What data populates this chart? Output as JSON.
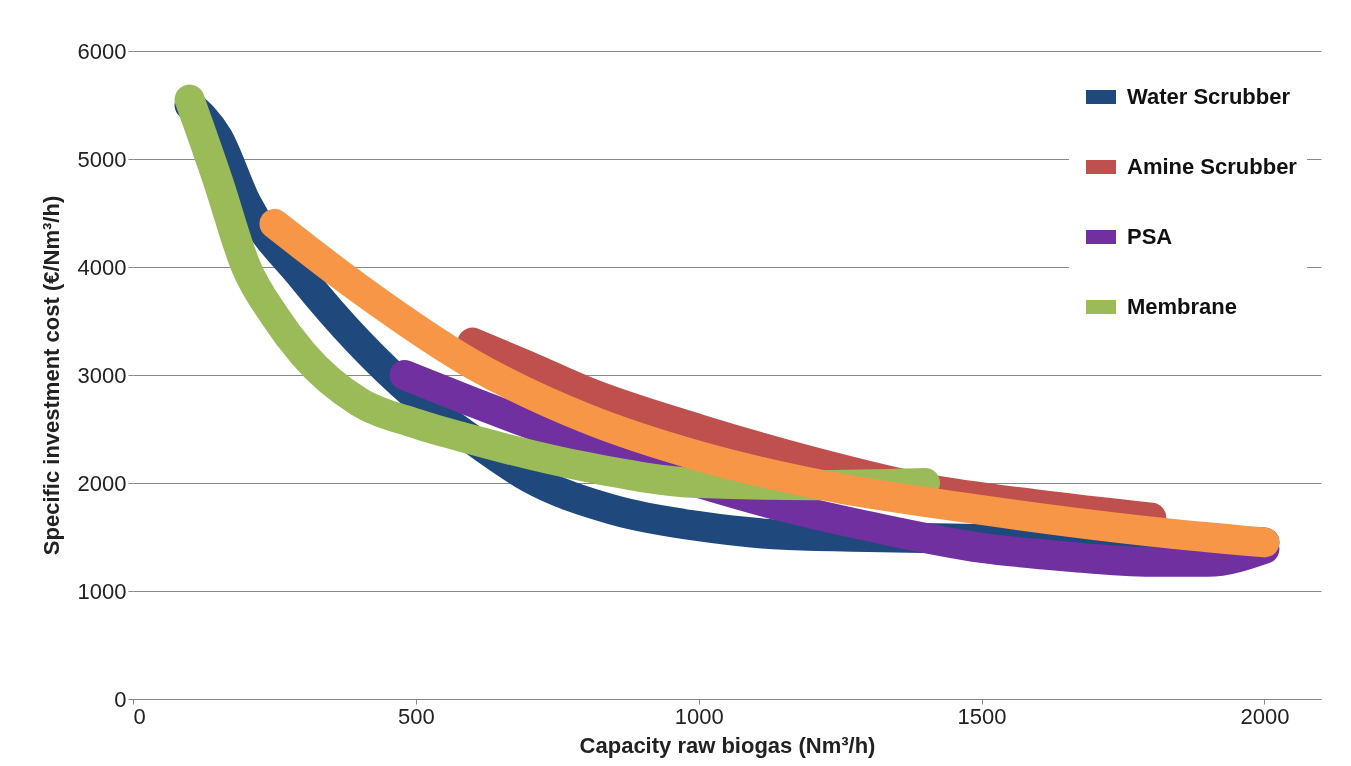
{
  "chart_data": {
    "type": "line",
    "xlabel": "Capacity raw biogas (Nm³/h)",
    "ylabel": "Specific investment cost (€/Nm³/h)",
    "xlim": [
      0,
      2100
    ],
    "ylim": [
      0,
      6000
    ],
    "xticks": [
      0,
      500,
      1000,
      1500,
      2000
    ],
    "yticks": [
      0,
      1000,
      2000,
      3000,
      4000,
      5000,
      6000
    ],
    "grid": "y",
    "legend": "top right",
    "series": [
      {
        "name": "Water Scrubber",
        "color": "#1f497d",
        "x": [
          100,
          150,
          200,
          300,
          400,
          500,
          600,
          700,
          850,
          1000,
          1150,
          1300,
          1500,
          1750,
          2000
        ],
        "values": [
          5500,
          5200,
          4600,
          3900,
          3300,
          2800,
          2400,
          2050,
          1750,
          1600,
          1520,
          1500,
          1480,
          1460,
          1450
        ]
      },
      {
        "name": "Amine Scrubber",
        "color": "#c0504d",
        "x": [
          600,
          700,
          800,
          1000,
          1200,
          1400,
          1600,
          1800
        ],
        "values": [
          3300,
          3080,
          2850,
          2500,
          2200,
          1950,
          1800,
          1680
        ]
      },
      {
        "name": "PSA",
        "color": "#7030a0",
        "x": [
          480,
          600,
          700,
          850,
          1000,
          1150,
          1300,
          1500,
          1650,
          1800,
          1900,
          2000
        ],
        "values": [
          3000,
          2750,
          2550,
          2250,
          2000,
          1780,
          1600,
          1400,
          1320,
          1270,
          1270,
          1390
        ]
      },
      {
        "name": "Membrane",
        "color": "#9bbb59",
        "x": [
          100,
          150,
          200,
          250,
          300,
          400,
          500,
          600,
          800,
          1000,
          1200,
          1400
        ],
        "values": [
          5550,
          4800,
          4000,
          3550,
          3200,
          2750,
          2550,
          2400,
          2150,
          2000,
          1980,
          2000
        ]
      },
      {
        "color": "#f79646",
        "x": [
          250,
          400,
          600,
          800,
          1000,
          1200,
          1500,
          1800,
          2000
        ],
        "values": [
          4400,
          3800,
          3100,
          2600,
          2250,
          2000,
          1750,
          1550,
          1450
        ]
      }
    ]
  }
}
